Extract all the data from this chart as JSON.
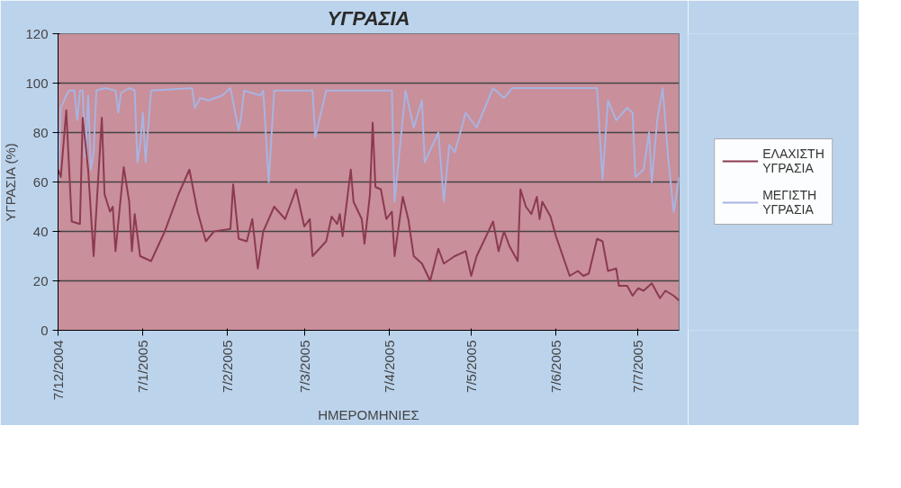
{
  "chart_data": {
    "type": "line",
    "title": "ΥΓΡΑΣΙΑ",
    "xlabel": "ΗΜΕΡΟΜΗΝΙΕΣ",
    "ylabel": "ΥΓΡΑΣΙΑ (%)",
    "ylim": [
      0,
      120
    ],
    "yticks": [
      0,
      20,
      40,
      60,
      80,
      100,
      120
    ],
    "xlim": [
      "2004-12-07",
      "2005-07-22"
    ],
    "xticks": [
      {
        "value": "2004-12-07",
        "label": "7/12/2004"
      },
      {
        "value": "2005-01-07",
        "label": "7/1/2005"
      },
      {
        "value": "2005-02-07",
        "label": "7/2/2005"
      },
      {
        "value": "2005-03-07",
        "label": "7/3/2005"
      },
      {
        "value": "2005-04-07",
        "label": "7/4/2005"
      },
      {
        "value": "2005-05-07",
        "label": "7/5/2005"
      },
      {
        "value": "2005-06-07",
        "label": "7/6/2005"
      },
      {
        "value": "2005-07-07",
        "label": "7/7/2005"
      }
    ],
    "grid": "y",
    "legend": "right",
    "marker": "none",
    "line_style": "solid",
    "series": [
      {
        "name": "ΕΛΑΧΙΣΤΗ ΥΓΡΑΣΙΑ",
        "color": "#8b3a50",
        "x": [
          "2004-12-07",
          "2004-12-08",
          "2004-12-10",
          "2004-12-12",
          "2004-12-15",
          "2004-12-16",
          "2004-12-18",
          "2004-12-20",
          "2004-12-23",
          "2004-12-24",
          "2004-12-26",
          "2004-12-27",
          "2004-12-28",
          "2004-12-31",
          "2005-01-02",
          "2005-01-03",
          "2005-01-04",
          "2005-01-06",
          "2005-01-10",
          "2005-01-15",
          "2005-01-20",
          "2005-01-24",
          "2005-01-27",
          "2005-01-30",
          "2005-02-02",
          "2005-02-08",
          "2005-02-09",
          "2005-02-11",
          "2005-02-14",
          "2005-02-16",
          "2005-02-18",
          "2005-02-20",
          "2005-02-24",
          "2005-02-28",
          "2005-03-04",
          "2005-03-07",
          "2005-03-09",
          "2005-03-10",
          "2005-03-15",
          "2005-03-17",
          "2005-03-19",
          "2005-03-20",
          "2005-03-21",
          "2005-03-24",
          "2005-03-25",
          "2005-03-28",
          "2005-03-29",
          "2005-03-31",
          "2005-04-01",
          "2005-04-02",
          "2005-04-04",
          "2005-04-06",
          "2005-04-08",
          "2005-04-09",
          "2005-04-12",
          "2005-04-14",
          "2005-04-16",
          "2005-04-19",
          "2005-04-22",
          "2005-04-25",
          "2005-04-27",
          "2005-05-01",
          "2005-05-05",
          "2005-05-07",
          "2005-05-09",
          "2005-05-15",
          "2005-05-17",
          "2005-05-19",
          "2005-05-21",
          "2005-05-24",
          "2005-05-25",
          "2005-05-27",
          "2005-05-29",
          "2005-05-31",
          "2005-06-01",
          "2005-06-02",
          "2005-06-05",
          "2005-06-07",
          "2005-06-12",
          "2005-06-15",
          "2005-06-17",
          "2005-06-19",
          "2005-06-22",
          "2005-06-24",
          "2005-06-26",
          "2005-06-29",
          "2005-06-30",
          "2005-07-03",
          "2005-07-05",
          "2005-07-07",
          "2005-07-09",
          "2005-07-12",
          "2005-07-15",
          "2005-07-17",
          "2005-07-20",
          "2005-07-22"
        ],
        "values": [
          65,
          62,
          89,
          44,
          43,
          86,
          65,
          30,
          86,
          55,
          48,
          50,
          32,
          66,
          52,
          32,
          47,
          30,
          28,
          40,
          55,
          65,
          48,
          36,
          40,
          41,
          59,
          37,
          36,
          45,
          25,
          40,
          50,
          45,
          57,
          42,
          45,
          30,
          36,
          46,
          43,
          47,
          38,
          65,
          52,
          45,
          35,
          55,
          84,
          58,
          57,
          45,
          48,
          30,
          54,
          45,
          30,
          27,
          20,
          33,
          27,
          30,
          32,
          22,
          30,
          44,
          32,
          40,
          34,
          28,
          57,
          50,
          47,
          54,
          45,
          52,
          46,
          38,
          22,
          24,
          22,
          23,
          37,
          36,
          24,
          25,
          18,
          18,
          14,
          17,
          16,
          19,
          13,
          16,
          14,
          12
        ]
      },
      {
        "name": "ΜΕΓΙΣΤΗ ΥΓΡΑΣΙΑ",
        "color": "#a8b4e0",
        "x": [
          "2004-12-07",
          "2004-12-08",
          "2004-12-10",
          "2004-12-11",
          "2004-12-13",
          "2004-12-14",
          "2004-12-15",
          "2004-12-16",
          "2004-12-17",
          "2004-12-18",
          "2004-12-19",
          "2004-12-20",
          "2004-12-21",
          "2004-12-24",
          "2004-12-28",
          "2004-12-29",
          "2004-12-30",
          "2005-01-02",
          "2005-01-04",
          "2005-01-05",
          "2005-01-06",
          "2005-01-07",
          "2005-01-08",
          "2005-01-10",
          "2005-01-25",
          "2005-01-26",
          "2005-01-28",
          "2005-01-31",
          "2005-02-05",
          "2005-02-08",
          "2005-02-11",
          "2005-02-12",
          "2005-02-13",
          "2005-02-16",
          "2005-02-19",
          "2005-02-20",
          "2005-02-22",
          "2005-02-24",
          "2005-03-10",
          "2005-03-11",
          "2005-03-15",
          "2005-04-08",
          "2005-04-09",
          "2005-04-13",
          "2005-04-16",
          "2005-04-19",
          "2005-04-20",
          "2005-04-25",
          "2005-04-27",
          "2005-04-29",
          "2005-05-01",
          "2005-05-05",
          "2005-05-09",
          "2005-05-15",
          "2005-05-19",
          "2005-05-22",
          "2005-06-22",
          "2005-06-24",
          "2005-06-26",
          "2005-06-29",
          "2005-07-03",
          "2005-07-05",
          "2005-07-06",
          "2005-07-09",
          "2005-07-11",
          "2005-07-12",
          "2005-07-14",
          "2005-07-16",
          "2005-07-18",
          "2005-07-20",
          "2005-07-22"
        ],
        "values": [
          60,
          90,
          95,
          97,
          97,
          85,
          97,
          97,
          70,
          95,
          65,
          72,
          97,
          98,
          97,
          88,
          96,
          98,
          97,
          68,
          75,
          88,
          68,
          97,
          98,
          90,
          94,
          93,
          95,
          98,
          81,
          87,
          97,
          96,
          95,
          97,
          60,
          97,
          97,
          78,
          97,
          97,
          52,
          97,
          82,
          93,
          68,
          80,
          52,
          75,
          72,
          88,
          82,
          98,
          94,
          98,
          98,
          61,
          93,
          85,
          90,
          88,
          62,
          65,
          80,
          60,
          85,
          98,
          70,
          48,
          62
        ]
      }
    ]
  }
}
